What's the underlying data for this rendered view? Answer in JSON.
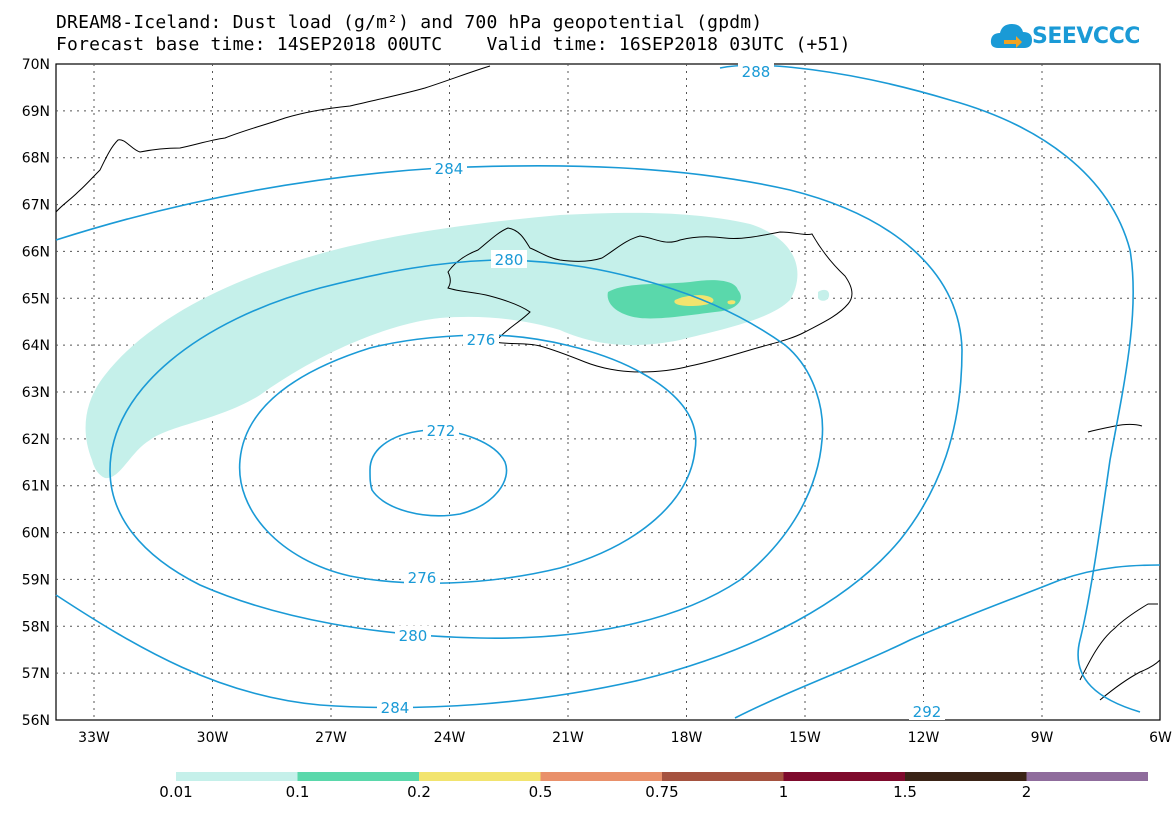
{
  "title": {
    "line1": "DREAM8-Iceland: Dust load (g/m²) and 700 hPa geopotential (gpdm)",
    "line2": "Forecast base time: 14SEP2018 00UTC    Valid time: 16SEP2018 03UTC (+51)"
  },
  "logo": {
    "text": "SEEVCCC",
    "icon": "cloud-icon",
    "color": "#1a9ad6"
  },
  "map": {
    "lat_labels": [
      "70N",
      "69N",
      "68N",
      "67N",
      "66N",
      "65N",
      "64N",
      "63N",
      "62N",
      "61N",
      "60N",
      "59N",
      "58N",
      "57N",
      "56N"
    ],
    "lon_labels": [
      "33W",
      "30W",
      "27W",
      "24W",
      "21W",
      "18W",
      "15W",
      "12W",
      "9W",
      "6W"
    ],
    "contour_color": "#1a9ad6",
    "contour_labels": [
      "288",
      "284",
      "280",
      "276",
      "272",
      "276",
      "280",
      "284",
      "292"
    ]
  },
  "colorbar": {
    "colors": [
      "#c5f0ea",
      "#5ad8ab",
      "#f2e46e",
      "#e9906a",
      "#a5523f",
      "#7e0a2c",
      "#3a2316",
      "#8f6c9c"
    ],
    "labels": [
      "0.01",
      "0.1",
      "0.2",
      "0.5",
      "0.75",
      "1",
      "1.5",
      "2"
    ]
  }
}
